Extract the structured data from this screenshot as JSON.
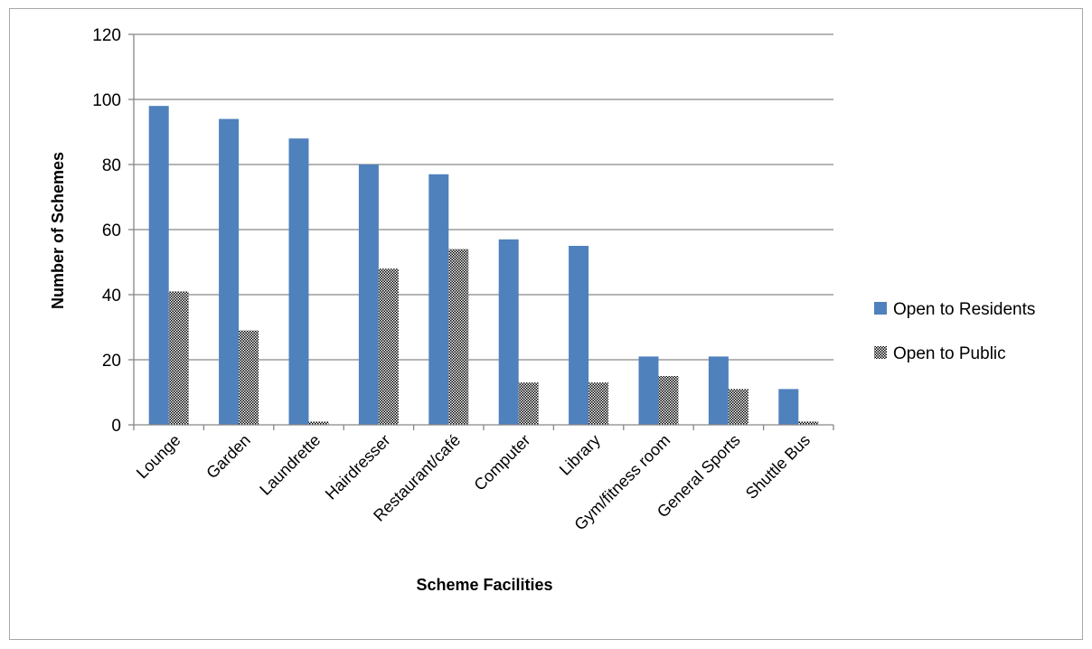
{
  "chart_data": {
    "type": "bar",
    "xlabel": "Scheme Facilities",
    "ylabel": "Number of Schemes",
    "ylim": [
      0,
      120
    ],
    "yticks": [
      0,
      20,
      40,
      60,
      80,
      100,
      120
    ],
    "grid": true,
    "legend_position": "right",
    "categories": [
      "Lounge",
      "Garden",
      "Laundrette",
      "Hairdresser",
      "Restaurant/café",
      "Computer",
      "Library",
      "Gym/fitness room",
      "General Sports",
      "Shuttle Bus"
    ],
    "series": [
      {
        "name": "Open to Residents",
        "color": "#4f81bd",
        "pattern": "solid",
        "values": [
          98,
          94,
          88,
          80,
          77,
          57,
          55,
          21,
          21,
          11
        ]
      },
      {
        "name": "Open to Public",
        "color": "#000000",
        "pattern": "dotted",
        "values": [
          41,
          29,
          1,
          48,
          54,
          13,
          13,
          15,
          11,
          1
        ]
      }
    ]
  }
}
